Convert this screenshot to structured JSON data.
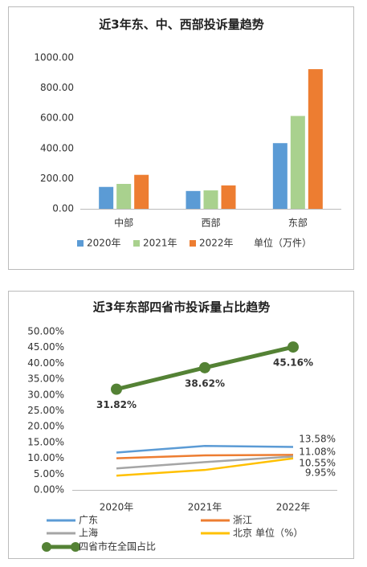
{
  "chart_data": [
    {
      "type": "bar",
      "title": "近3年东、中、西部投诉量趋势",
      "categories": [
        "中部",
        "西部",
        "东部"
      ],
      "series": [
        {
          "name": "2020年",
          "color": "#5b9bd5",
          "values": [
            145,
            118,
            435
          ]
        },
        {
          "name": "2021年",
          "color": "#a9d18e",
          "values": [
            165,
            122,
            615
          ]
        },
        {
          "name": "2022年",
          "color": "#ed7d31",
          "values": [
            225,
            155,
            925
          ]
        }
      ],
      "ylim": [
        0,
        1000
      ],
      "yticks": [
        {
          "value": 0,
          "label": "0.00"
        },
        {
          "value": 200,
          "label": "200.00"
        },
        {
          "value": 400,
          "label": "400.00"
        },
        {
          "value": 600,
          "label": "600.00"
        },
        {
          "value": 800,
          "label": "800.00"
        },
        {
          "value": 1000,
          "label": "1000.00"
        }
      ],
      "annotation": "单位（万件）",
      "grid": false
    },
    {
      "type": "line",
      "title": "近3年东部四省市投诉量占比趋势",
      "categories": [
        "2020年",
        "2021年",
        "2022年"
      ],
      "series": [
        {
          "name": "广东",
          "color": "#5b9bd5",
          "values": [
            11.8,
            13.9,
            13.58
          ],
          "value_labels": [
            null,
            null,
            "13.58%"
          ]
        },
        {
          "name": "浙江",
          "color": "#ed7d31",
          "values": [
            10.0,
            10.9,
            11.08
          ],
          "value_labels": [
            null,
            null,
            "11.08%"
          ]
        },
        {
          "name": "上海",
          "color": "#a5a5a5",
          "values": [
            6.8,
            8.8,
            10.55
          ],
          "value_labels": [
            null,
            null,
            "10.55%"
          ]
        },
        {
          "name": "北京",
          "color": "#ffc000",
          "values": [
            4.5,
            6.3,
            9.95
          ],
          "value_labels": [
            null,
            null,
            "9.95%"
          ]
        },
        {
          "name": "四省市在全国占比",
          "color": "#548235",
          "values": [
            31.82,
            38.62,
            45.16
          ],
          "value_labels": [
            "31.82%",
            "38.62%",
            "45.16%"
          ],
          "markers": true
        }
      ],
      "ylim": [
        0,
        50
      ],
      "yticks": [
        {
          "value": 0,
          "label": "0.00%"
        },
        {
          "value": 5,
          "label": "5.00%"
        },
        {
          "value": 10,
          "label": "10.00%"
        },
        {
          "value": 15,
          "label": "15.00%"
        },
        {
          "value": 20,
          "label": "20.00%"
        },
        {
          "value": 25,
          "label": "25.00%"
        },
        {
          "value": 30,
          "label": "30.00%"
        },
        {
          "value": 35,
          "label": "35.00%"
        },
        {
          "value": 40,
          "label": "40.00%"
        },
        {
          "value": 45,
          "label": "45.00%"
        },
        {
          "value": 50,
          "label": "50.00%"
        }
      ],
      "annotation": "单位（%）",
      "grid": false
    }
  ]
}
